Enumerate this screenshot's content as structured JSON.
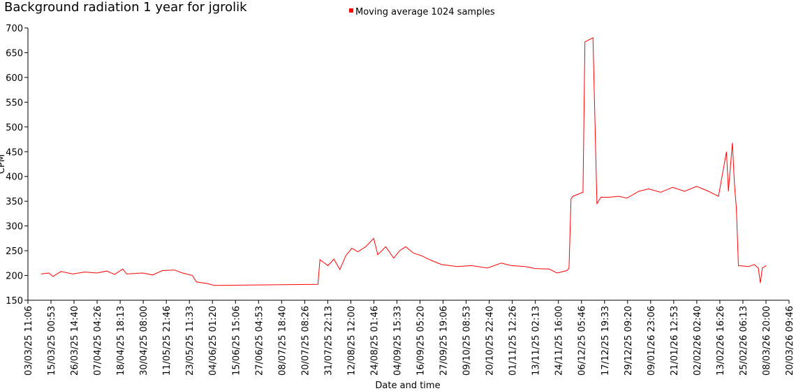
{
  "chart_data": {
    "type": "line",
    "title": "Background radiation 1 year for jgrolik",
    "x_label": "Date and time",
    "y_label": "CPM",
    "legend": "top",
    "grid": false,
    "xlim": [
      "03/03/25 11:06",
      "20/03/26 09:46"
    ],
    "xticks": [
      "03/03/25 11:06",
      "15/03/25 00:53",
      "26/03/25 14:40",
      "07/04/25 04:26",
      "18/04/25 18:13",
      "30/04/25 08:00",
      "11/05/25 21:46",
      "23/05/25 11:33",
      "04/06/25 01:20",
      "15/06/25 15:06",
      "27/06/25 04:53",
      "08/07/25 18:40",
      "20/07/25 08:26",
      "31/07/25 22:13",
      "12/08/25 12:00",
      "24/08/25 01:46",
      "04/09/25 15:33",
      "16/09/25 05:20",
      "27/09/25 19:06",
      "09/10/25 08:53",
      "20/10/25 22:40",
      "01/11/25 12:26",
      "13/11/25 02:13",
      "24/11/25 16:00",
      "06/12/25 05:46",
      "17/12/25 19:33",
      "29/12/25 09:20",
      "09/01/26 23:06",
      "21/01/26 12:53",
      "02/02/26 02:40",
      "13/02/26 16:26",
      "25/02/26 06:13",
      "08/03/26 20:00",
      "20/03/26 09:46"
    ],
    "ylim": [
      150,
      700
    ],
    "yticks": [
      150,
      200,
      250,
      300,
      350,
      400,
      450,
      500,
      550,
      600,
      650,
      700
    ],
    "series": [
      {
        "name": "Moving average 1024 samples",
        "color": "#ff0000",
        "x": [
          "10/03/25",
          "14/03/25",
          "16/03/25",
          "20/03/25",
          "26/03/25",
          "01/04/25",
          "07/04/25",
          "12/04/25",
          "16/04/25",
          "20/04/25",
          "22/04/25",
          "30/04/25",
          "05/05/25",
          "10/05/25",
          "16/05/25",
          "20/05/25",
          "25/05/25",
          "27/05/25",
          "01/06/25",
          "05/06/25",
          "27/07/25",
          "28/07/25",
          "01/08/25",
          "04/08/25",
          "07/08/25",
          "10/08/25",
          "13/08/25",
          "16/08/25",
          "20/08/25",
          "24/08/25",
          "26/08/25",
          "30/08/25",
          "03/09/25",
          "06/09/25",
          "09/09/25",
          "13/09/25",
          "17/09/25",
          "21/09/25",
          "27/09/25",
          "05/10/25",
          "12/10/25",
          "20/10/25",
          "27/10/25",
          "01/11/25",
          "08/11/25",
          "13/11/25",
          "20/11/25",
          "24/11/25",
          "29/11/25",
          "30/11/25",
          "01/12/25",
          "02/12/25",
          "07/12/25",
          "08/12/25",
          "12/12/25",
          "14/12/25",
          "16/12/25",
          "20/12/25",
          "25/12/25",
          "29/12/25",
          "04/01/26",
          "09/01/26",
          "15/01/26",
          "21/01/26",
          "27/01/26",
          "02/02/26",
          "08/02/26",
          "13/02/26",
          "17/02/26",
          "18/02/26",
          "20/02/26",
          "21/02/26",
          "22/02/26",
          "23/02/26",
          "28/02/26",
          "03/03/26",
          "05/03/26",
          "06/03/26",
          "07/03/26",
          "09/03/26"
        ],
        "values": [
          203,
          205,
          198,
          208,
          203,
          207,
          205,
          209,
          202,
          213,
          203,
          205,
          201,
          210,
          211,
          205,
          200,
          187,
          184,
          180,
          182,
          232,
          220,
          233,
          212,
          240,
          255,
          248,
          258,
          275,
          242,
          258,
          235,
          250,
          258,
          245,
          240,
          232,
          222,
          218,
          220,
          215,
          225,
          220,
          218,
          214,
          213,
          205,
          210,
          215,
          355,
          360,
          368,
          672,
          680,
          345,
          358,
          358,
          360,
          356,
          370,
          375,
          368,
          378,
          370,
          380,
          370,
          360,
          450,
          370,
          468,
          385,
          335,
          220,
          218,
          222,
          215,
          185,
          215,
          220
        ]
      }
    ]
  }
}
